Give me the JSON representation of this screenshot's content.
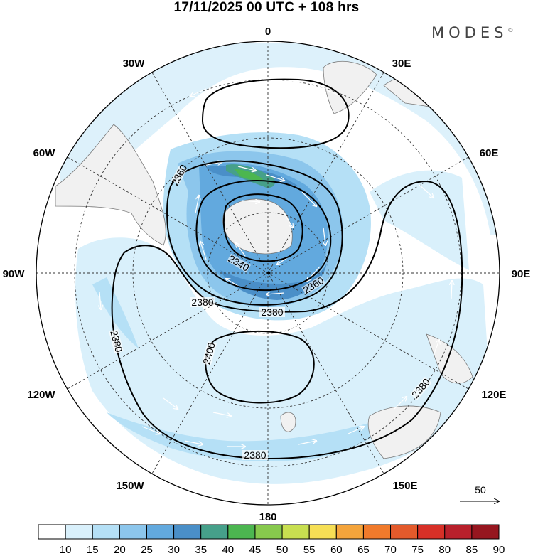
{
  "title": "17/11/2025  00 UTC  + 108 hrs",
  "brand": {
    "name": "MODES",
    "mark": "©"
  },
  "longitude_labels": {
    "n0": "0",
    "n30e": "30E",
    "n60e": "60E",
    "n90e": "90E",
    "n120e": "120E",
    "n150e": "150E",
    "n180": "180",
    "n150w": "150W",
    "n120w": "120W",
    "n90w": "90W",
    "n60w": "60W",
    "n30w": "30W"
  },
  "contour_labels": {
    "c2360_a": "2360",
    "c2340": "2340",
    "c2360_b": "2360",
    "c2380_a": "2380",
    "c2380_b": "2380",
    "c2380_c": "2380",
    "c2380_d": "2380",
    "c2380_e": "2380",
    "c2400": "2400"
  },
  "reference_vector": {
    "label": "50"
  },
  "colorbar": {
    "labels": [
      "10",
      "15",
      "20",
      "25",
      "30",
      "35",
      "40",
      "45",
      "50",
      "55",
      "60",
      "65",
      "70",
      "75",
      "80",
      "85",
      "90"
    ],
    "colors": [
      "#ffffff",
      "#d9f0fb",
      "#b5e0f6",
      "#8cc6ec",
      "#62a9de",
      "#4a8fc8",
      "#46a08a",
      "#4cb650",
      "#87c94d",
      "#c8df50",
      "#f6df55",
      "#f4a43b",
      "#f07a2b",
      "#e35a2b",
      "#d73027",
      "#b8202b",
      "#96161f"
    ]
  },
  "chart_data": {
    "type": "heatmap",
    "title": "17/11/2025  00 UTC  + 108 hrs",
    "projection": "south polar stereographic",
    "fields": [
      "wind speed (shaded, colorbar 10-90)",
      "geopotential height contours",
      "wind vectors"
    ],
    "contour_levels": [
      2340,
      2360,
      2380,
      2400
    ],
    "colorbar_ticks": [
      10,
      15,
      20,
      25,
      30,
      35,
      40,
      45,
      50,
      55,
      60,
      65,
      70,
      75,
      80,
      85,
      90
    ],
    "reference_vector": 50,
    "longitudes": [
      "0",
      "30E",
      "60E",
      "90E",
      "120E",
      "150E",
      "180",
      "150W",
      "120W",
      "90W",
      "60W",
      "30W"
    ]
  }
}
